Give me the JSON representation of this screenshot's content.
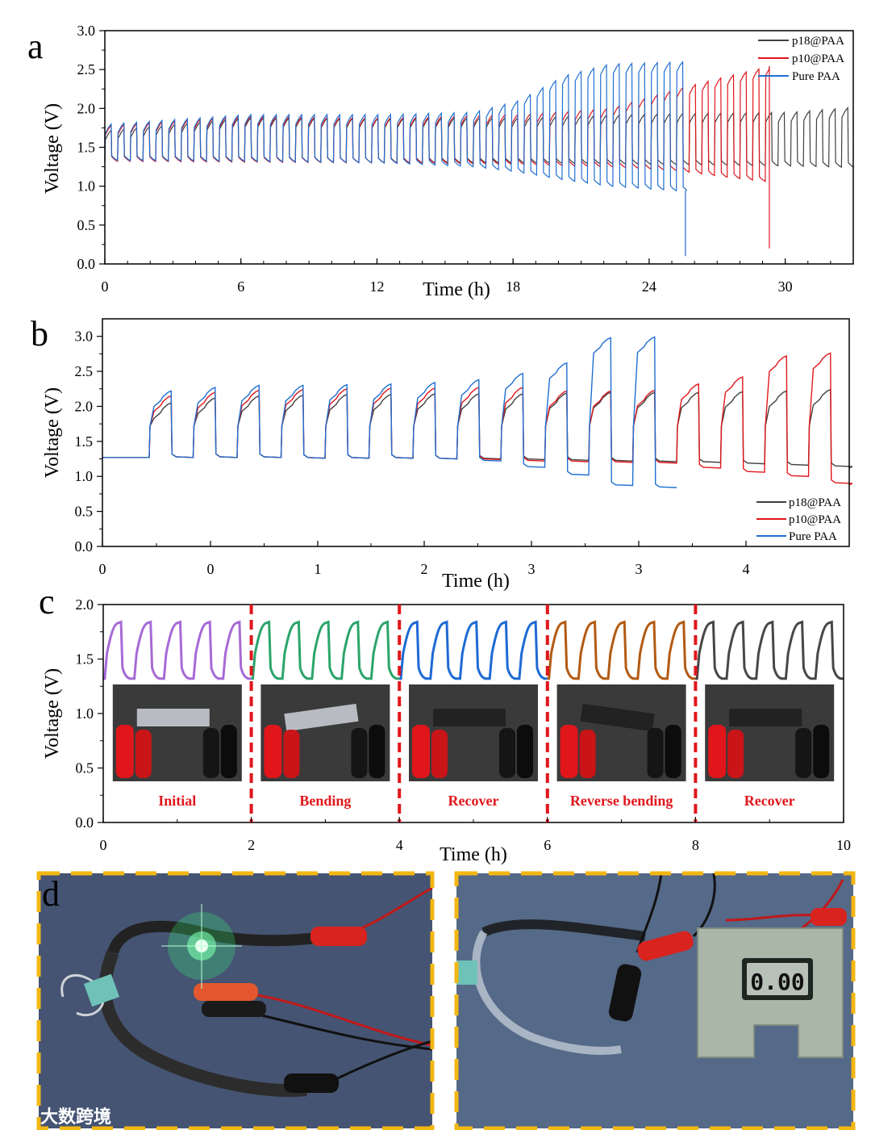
{
  "watermark": "大数跨境",
  "meter_reading": "0.00",
  "chart_data": [
    {
      "panel": "a",
      "type": "line",
      "xlabel": "Time (h)",
      "ylabel": "Voltage (V)",
      "xlim": [
        0,
        33
      ],
      "ylim": [
        0,
        3.0
      ],
      "xticks": [
        0,
        6,
        12,
        18,
        24,
        30
      ],
      "yticks": [
        0.0,
        0.5,
        1.0,
        1.5,
        2.0,
        2.5,
        3.0
      ],
      "legend_position": "top-right",
      "series": [
        {
          "name": "p18@PAA",
          "color": "#404040",
          "cycle_period": 0.56,
          "end": 33,
          "charge_points": [
            [
              0,
              1.72
            ],
            [
              6,
              1.88
            ],
            [
              12,
              1.87
            ],
            [
              18,
              1.88
            ],
            [
              24,
              1.93
            ],
            [
              30,
              1.95
            ],
            [
              33,
              2.02
            ]
          ],
          "discharge_points": [
            [
              0,
              1.33
            ],
            [
              6,
              1.32
            ],
            [
              12,
              1.3
            ],
            [
              18,
              1.3
            ],
            [
              24,
              1.28
            ],
            [
              30,
              1.26
            ],
            [
              33,
              1.24
            ]
          ]
        },
        {
          "name": "p10@PAA",
          "color": "#e0161b",
          "cycle_period": 0.56,
          "end": 29.3,
          "failure_voltage": 0.2,
          "charge_points": [
            [
              0,
              1.78
            ],
            [
              6,
              1.9
            ],
            [
              12,
              1.88
            ],
            [
              18,
              1.92
            ],
            [
              22,
              2.0
            ],
            [
              25,
              2.25
            ],
            [
              27,
              2.4
            ],
            [
              29.2,
              2.55
            ]
          ],
          "discharge_points": [
            [
              0,
              1.32
            ],
            [
              6,
              1.31
            ],
            [
              12,
              1.3
            ],
            [
              18,
              1.28
            ],
            [
              22,
              1.25
            ],
            [
              25,
              1.2
            ],
            [
              27,
              1.12
            ],
            [
              29.2,
              1.05
            ]
          ]
        },
        {
          "name": "Pure PAA",
          "color": "#1f6fd1",
          "cycle_period": 0.56,
          "end": 25.6,
          "failure_voltage": 0.1,
          "charge_points": [
            [
              0,
              1.8
            ],
            [
              6,
              1.92
            ],
            [
              12,
              1.92
            ],
            [
              16,
              1.95
            ],
            [
              18,
              2.1
            ],
            [
              20,
              2.42
            ],
            [
              22,
              2.57
            ],
            [
              25.5,
              2.6
            ]
          ],
          "discharge_points": [
            [
              0,
              1.33
            ],
            [
              6,
              1.32
            ],
            [
              12,
              1.3
            ],
            [
              16,
              1.25
            ],
            [
              18,
              1.18
            ],
            [
              20,
              1.08
            ],
            [
              22,
              1.0
            ],
            [
              25.5,
              0.93
            ]
          ]
        }
      ]
    },
    {
      "panel": "b",
      "type": "line",
      "xlabel": "Time (h)",
      "ylabel": "Voltage (V)",
      "ylim": [
        0,
        3.25
      ],
      "xticks": [
        "0",
        "0",
        "1",
        "2",
        "3",
        "3",
        "4"
      ],
      "yticks": [
        0.0,
        0.5,
        1.0,
        1.5,
        2.0,
        2.5,
        3.0
      ],
      "legend_position": "bottom-right",
      "series": [
        {
          "name": "p18@PAA",
          "color": "#404040",
          "charge": [
            2.05,
            2.12,
            2.15,
            2.16,
            2.17,
            2.17,
            2.18,
            2.18,
            2.18,
            2.19,
            2.2,
            2.2,
            2.2,
            2.21,
            2.22,
            2.24
          ],
          "discharge": [
            1.27,
            1.27,
            1.27,
            1.26,
            1.26,
            1.26,
            1.25,
            1.25,
            1.24,
            1.23,
            1.22,
            1.21,
            1.2,
            1.18,
            1.16,
            1.14
          ]
        },
        {
          "name": "p10@PAA",
          "color": "#e0161b",
          "charge": [
            2.15,
            2.2,
            2.23,
            2.24,
            2.25,
            2.26,
            2.26,
            2.27,
            2.27,
            2.22,
            2.22,
            2.23,
            2.32,
            2.42,
            2.72,
            2.76
          ],
          "discharge": [
            1.27,
            1.27,
            1.27,
            1.26,
            1.26,
            1.26,
            1.25,
            1.24,
            1.22,
            1.21,
            1.2,
            1.19,
            1.12,
            1.06,
            1.0,
            0.9
          ]
        },
        {
          "name": "Pure PAA",
          "color": "#1f6fd1",
          "charge": [
            2.22,
            2.27,
            2.3,
            2.3,
            2.31,
            2.32,
            2.34,
            2.38,
            2.47,
            2.62,
            2.98,
            2.99
          ],
          "discharge": [
            1.27,
            1.27,
            1.27,
            1.26,
            1.26,
            1.26,
            1.25,
            1.22,
            1.13,
            1.02,
            0.87,
            0.84
          ]
        }
      ]
    },
    {
      "panel": "c",
      "type": "line",
      "xlabel": "Time (h)",
      "ylabel": "Voltage (V)",
      "xlim": [
        0,
        10
      ],
      "ylim": [
        0,
        2.0
      ],
      "xticks": [
        0,
        2,
        4,
        6,
        8,
        10
      ],
      "yticks": [
        0.0,
        0.5,
        1.0,
        1.5,
        2.0
      ],
      "cycle_period": 0.4,
      "charge_voltage": 1.84,
      "discharge_voltage": 1.32,
      "dividers": [
        2,
        4,
        6,
        8
      ],
      "segments": [
        {
          "label": "Initial",
          "color": "#a66ad6",
          "start": 0,
          "end": 2
        },
        {
          "label": "Bending",
          "color": "#2aa56a",
          "start": 2,
          "end": 4
        },
        {
          "label": "Recover",
          "color": "#1d6ad4",
          "start": 4,
          "end": 6
        },
        {
          "label": "Reverse bending",
          "color": "#b35a12",
          "start": 6,
          "end": 8
        },
        {
          "label": "Recover",
          "color": "#474747",
          "start": 8,
          "end": 10
        }
      ]
    }
  ]
}
